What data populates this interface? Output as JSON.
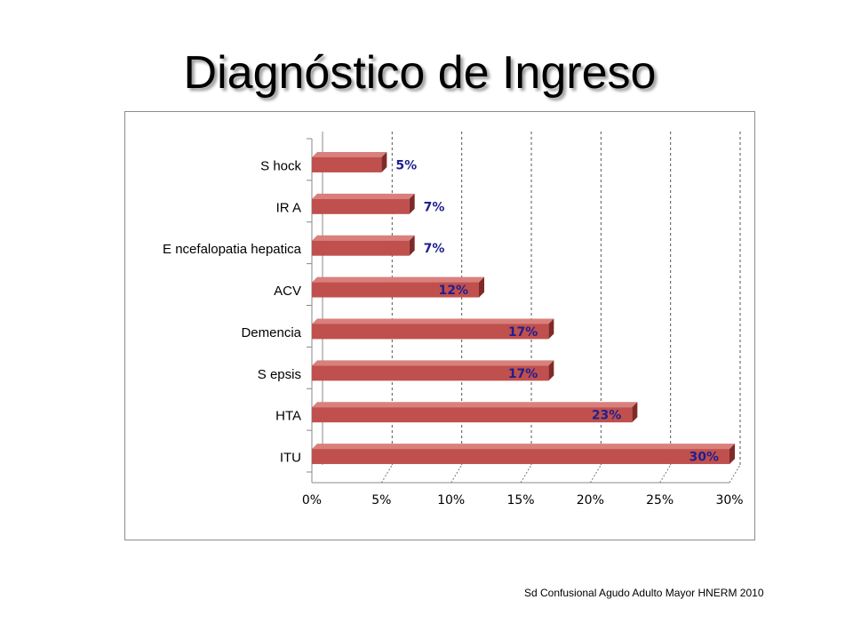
{
  "slide": {
    "title": "Diagnóstico de Ingreso",
    "footer": "Sd Confusional Agudo Adulto Mayor HNERM 2010"
  },
  "chart_data": {
    "type": "bar",
    "orientation": "horizontal",
    "style": "3d",
    "categories": [
      "S hock",
      "IR A",
      "E ncefalopatia hepatica",
      "ACV",
      "Demencia",
      "S epsis",
      "HTA",
      "ITU"
    ],
    "values": [
      5,
      7,
      7,
      12,
      17,
      17,
      23,
      30
    ],
    "data_labels": [
      "5%",
      "7%",
      "7%",
      "12%",
      "17%",
      "17%",
      "23%",
      "30%"
    ],
    "x_ticks": [
      "0%",
      "5%",
      "10%",
      "15%",
      "20%",
      "25%",
      "30%"
    ],
    "xlim": [
      0,
      30
    ],
    "xunit": "%",
    "grid": "vertical-dashed",
    "bar_color": "#c0504d",
    "label_color": "#1f1f8f"
  }
}
